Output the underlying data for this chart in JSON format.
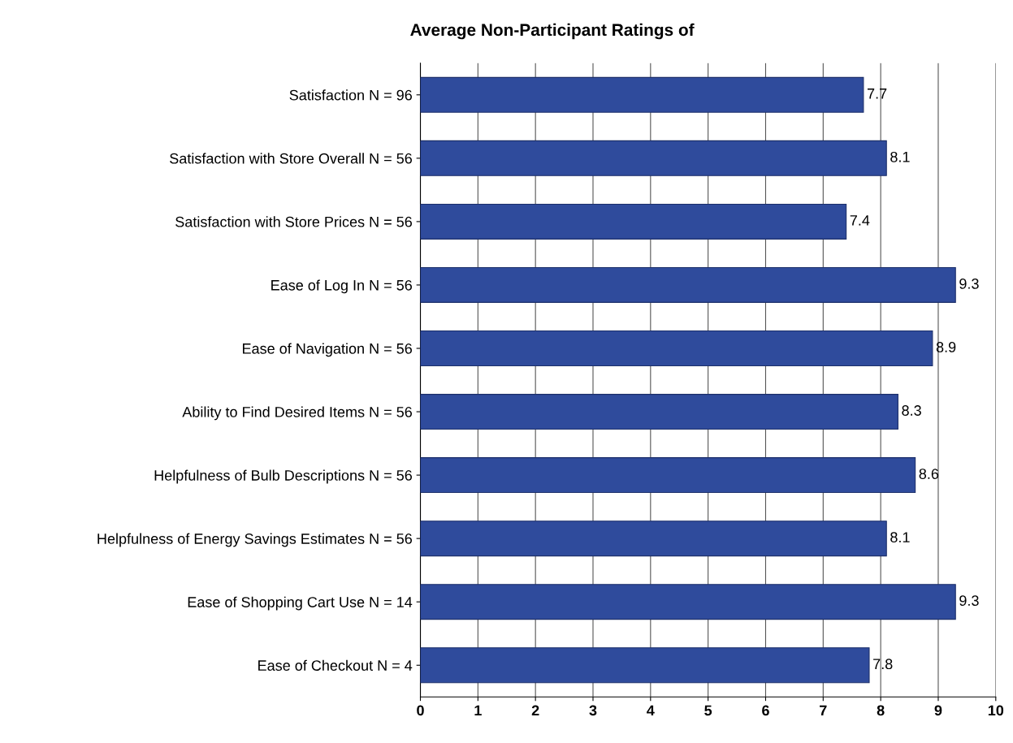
{
  "chart_data": {
    "type": "bar",
    "orientation": "horizontal",
    "title": "Average Non-Participant Ratings of",
    "categories": [
      "Satisfaction N = 96",
      "Satisfaction with Store Overall N = 56",
      "Satisfaction with Store Prices N = 56",
      "Ease of Log In N = 56",
      "Ease of Navigation N = 56",
      "Ability to Find Desired Items N = 56",
      "Helpfulness of Bulb Descriptions N = 56",
      "Helpfulness of Energy Savings Estimates N = 56",
      "Ease of Shopping Cart Use N = 14",
      "Ease of Checkout N = 4"
    ],
    "values": [
      7.7,
      8.1,
      7.4,
      9.3,
      8.9,
      8.3,
      8.6,
      8.1,
      9.3,
      7.8
    ],
    "color": "#2f4b9c",
    "data_labels": true,
    "grid": "x",
    "legend": false,
    "xlim": [
      0,
      10
    ],
    "xticks": [
      0,
      1,
      2,
      3,
      4,
      5,
      6,
      7,
      8,
      9,
      10
    ]
  }
}
